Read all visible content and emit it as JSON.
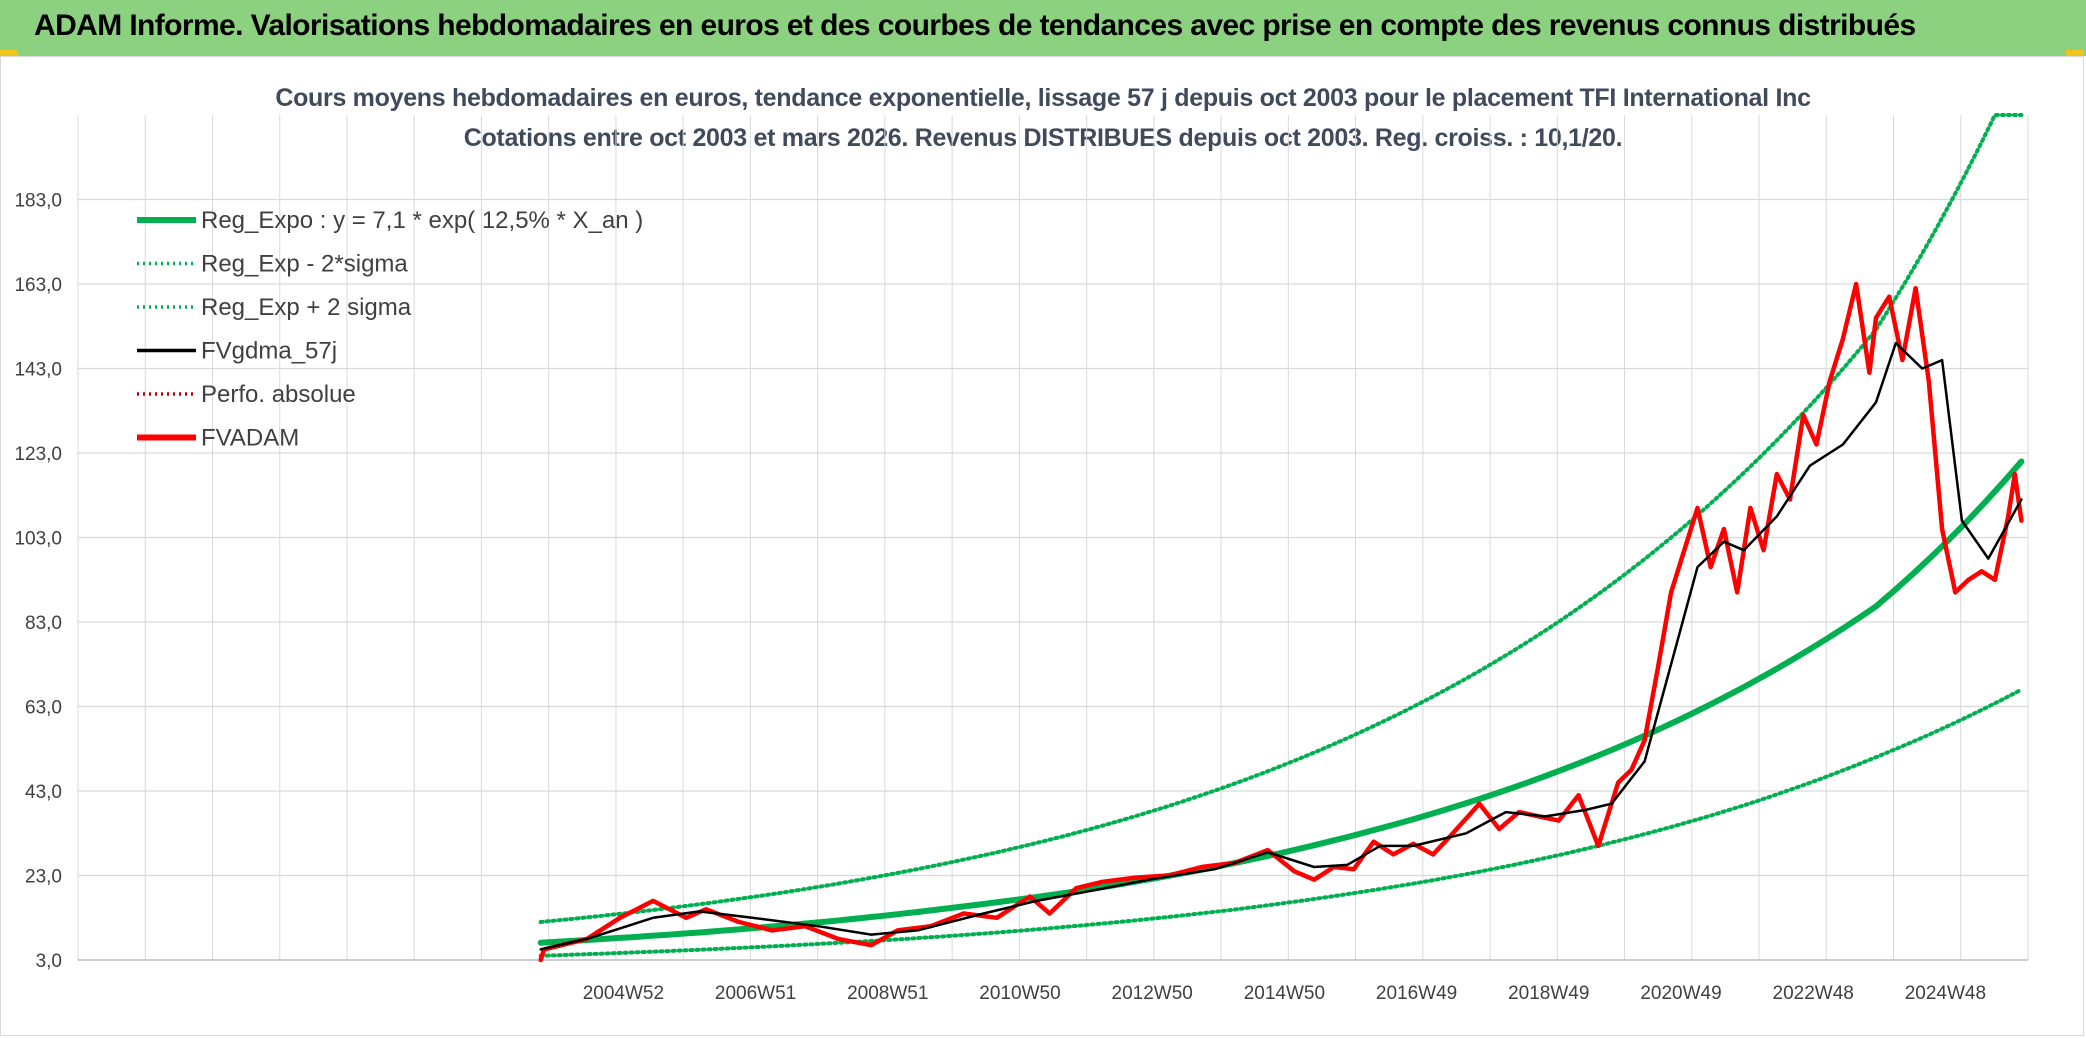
{
  "header": {
    "title": "ADAM Informe. Valorisations hebdomadaires en euros et des courbes de tendances avec prise en compte des revenus connus distribués"
  },
  "colors": {
    "banner": "#8bd17f",
    "reg_expo": "#00b050",
    "fvadam": "#ff0000",
    "fvgdma": "#000000",
    "grid": "#d9d9d9",
    "axis_text": "#404040"
  },
  "chart_data": {
    "type": "line",
    "title": "Cours moyens hebdomadaires en euros, tendance exponentielle, lissage 57 j depuis oct 2003 pour le placement TFI International Inc",
    "subtitle": "Cotations entre oct 2003 et mars 2026. Revenus DISTRIBUES depuis oct 2003. Reg. croiss. : 10,1/20.",
    "xlabel": "",
    "ylabel": "",
    "y_ticks": [
      "3,0",
      "23,0",
      "43,0",
      "63,0",
      "83,0",
      "103,0",
      "123,0",
      "143,0",
      "163,0",
      "183,0"
    ],
    "x_ticks": [
      "2004W52",
      "2006W51",
      "2008W51",
      "2010W50",
      "2012W50",
      "2014W50",
      "2016W49",
      "2018W49",
      "2020W49",
      "2022W48",
      "2024W48"
    ],
    "ylim": [
      3,
      203
    ],
    "xlim": [
      1996.8,
      2026.3
    ],
    "legend_position": "top-left",
    "legend": [
      {
        "label": "Reg_Expo : y = 7,1 * exp( 12,5% *  X_an )",
        "color": "#00b050",
        "style": "solid-thick"
      },
      {
        "label": "Reg_Exp - 2*sigma",
        "color": "#00b050",
        "style": "dotted"
      },
      {
        "label": "Reg_Exp + 2 sigma",
        "color": "#00b050",
        "style": "dotted"
      },
      {
        "label": "FVgdma_57j",
        "color": "#000000",
        "style": "solid"
      },
      {
        "label": "Perfo. absolue",
        "color": "#c00000",
        "style": "dotted"
      },
      {
        "label": "FVADAM",
        "color": "#ff0000",
        "style": "solid-thick"
      }
    ],
    "series": [
      {
        "name": "Reg_Expo",
        "x": [
          2003.8,
          2006,
          2008,
          2010,
          2012,
          2014,
          2016,
          2018,
          2020,
          2022,
          2024,
          2026.2
        ],
        "y": [
          7.1,
          9.3,
          11.9,
          15.3,
          19.5,
          25.0,
          32.1,
          41.1,
          52.7,
          67.6,
          86.7,
          121.0
        ]
      },
      {
        "name": "Reg_Exp - 2*sigma",
        "x": [
          2003.8,
          2006,
          2008,
          2010,
          2012,
          2014,
          2016,
          2018,
          2020,
          2022,
          2024,
          2026.2
        ],
        "y": [
          4.0,
          5.3,
          6.8,
          8.7,
          11.2,
          14.4,
          18.6,
          23.9,
          30.8,
          39.6,
          51.0,
          67.0
        ]
      },
      {
        "name": "Reg_Exp + 2 sigma",
        "x": [
          2003.8,
          2006,
          2008,
          2010,
          2012,
          2014,
          2016,
          2018,
          2020,
          2022,
          2024,
          2025.8,
          2026.2
        ],
        "y": [
          12.0,
          15.8,
          20.3,
          26.1,
          33.5,
          43.1,
          55.5,
          71.4,
          91.9,
          118.3,
          152.2,
          203.0,
          203.0
        ]
      },
      {
        "name": "FVgdma_57j",
        "x": [
          2003.8,
          2004.5,
          2005.5,
          2006.2,
          2007.0,
          2008.0,
          2008.8,
          2009.5,
          2010.5,
          2011.3,
          2012.0,
          2013.0,
          2014.0,
          2014.8,
          2015.5,
          2016.0,
          2016.5,
          2017.0,
          2017.8,
          2018.4,
          2019.0,
          2019.6,
          2020.0,
          2020.5,
          2020.9,
          2021.3,
          2021.7,
          2022.0,
          2022.5,
          2023.0,
          2023.5,
          2024.0,
          2024.3,
          2024.7,
          2025.0,
          2025.3,
          2025.7,
          2026.2
        ],
        "y": [
          5.5,
          8.0,
          13.0,
          14.5,
          13.0,
          11.0,
          9.0,
          10.0,
          14.0,
          17.0,
          19.0,
          22.0,
          24.5,
          28.5,
          25.0,
          25.5,
          30.0,
          30.0,
          33.0,
          38.0,
          37.0,
          38.5,
          40.0,
          50.0,
          73.0,
          96.0,
          102.0,
          100.0,
          108.0,
          120.0,
          125.0,
          135.0,
          149.0,
          143.0,
          145.0,
          107.0,
          98.0,
          112.0
        ]
      },
      {
        "name": "FVADAM",
        "x": [
          2003.8,
          2003.85,
          2004.5,
          2005.0,
          2005.5,
          2006.0,
          2006.3,
          2006.8,
          2007.3,
          2007.8,
          2008.3,
          2008.8,
          2009.2,
          2009.7,
          2010.2,
          2010.7,
          2011.2,
          2011.5,
          2011.9,
          2012.3,
          2012.8,
          2013.3,
          2013.8,
          2014.3,
          2014.8,
          2015.2,
          2015.5,
          2015.8,
          2016.1,
          2016.4,
          2016.7,
          2017.0,
          2017.3,
          2017.6,
          2018.0,
          2018.3,
          2018.6,
          2018.9,
          2019.2,
          2019.5,
          2019.8,
          2020.1,
          2020.3,
          2020.5,
          2020.7,
          2020.9,
          2021.1,
          2021.3,
          2021.5,
          2021.7,
          2021.9,
          2022.1,
          2022.3,
          2022.5,
          2022.7,
          2022.9,
          2023.1,
          2023.3,
          2023.5,
          2023.7,
          2023.9,
          2024.0,
          2024.2,
          2024.4,
          2024.6,
          2024.8,
          2025.0,
          2025.2,
          2025.4,
          2025.6,
          2025.8,
          2026.0,
          2026.1,
          2026.2
        ],
        "y": [
          3.0,
          5.5,
          8.0,
          13.0,
          17.0,
          13.0,
          15.0,
          12.0,
          10.0,
          11.0,
          8.0,
          6.5,
          10.0,
          11.0,
          14.0,
          13.0,
          18.0,
          14.0,
          20.0,
          21.5,
          22.5,
          23.0,
          25.0,
          26.0,
          29.0,
          24.0,
          22.0,
          25.0,
          24.5,
          31.0,
          28.0,
          30.5,
          28.0,
          33.0,
          40.0,
          34.0,
          38.0,
          37.0,
          36.0,
          42.0,
          30.0,
          45.0,
          48.0,
          55.0,
          72.0,
          90.0,
          100.0,
          110.0,
          96.0,
          105.0,
          90.0,
          110.0,
          100.0,
          118.0,
          112.0,
          132.0,
          125.0,
          140.0,
          150.0,
          163.0,
          142.0,
          155.0,
          160.0,
          145.0,
          162.0,
          140.0,
          105.0,
          90.0,
          93.0,
          95.0,
          93.0,
          108.0,
          118.0,
          107.0
        ]
      }
    ]
  }
}
